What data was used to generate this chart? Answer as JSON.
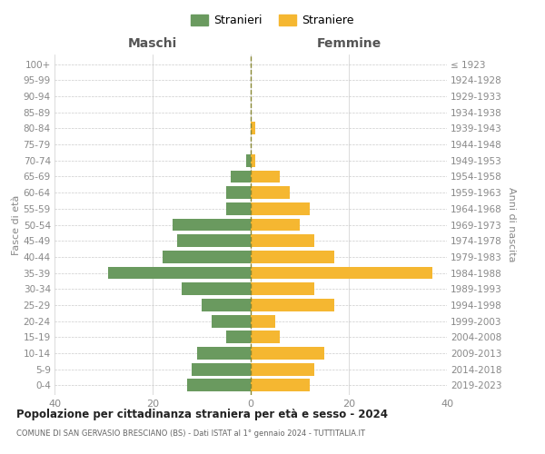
{
  "age_groups": [
    "0-4",
    "5-9",
    "10-14",
    "15-19",
    "20-24",
    "25-29",
    "30-34",
    "35-39",
    "40-44",
    "45-49",
    "50-54",
    "55-59",
    "60-64",
    "65-69",
    "70-74",
    "75-79",
    "80-84",
    "85-89",
    "90-94",
    "95-99",
    "100+"
  ],
  "birth_years": [
    "2019-2023",
    "2014-2018",
    "2009-2013",
    "2004-2008",
    "1999-2003",
    "1994-1998",
    "1989-1993",
    "1984-1988",
    "1979-1983",
    "1974-1978",
    "1969-1973",
    "1964-1968",
    "1959-1963",
    "1954-1958",
    "1949-1953",
    "1944-1948",
    "1939-1943",
    "1934-1938",
    "1929-1933",
    "1924-1928",
    "≤ 1923"
  ],
  "males": [
    13,
    12,
    11,
    5,
    8,
    10,
    14,
    29,
    18,
    15,
    16,
    5,
    5,
    4,
    1,
    0,
    0,
    0,
    0,
    0,
    0
  ],
  "females": [
    12,
    13,
    15,
    6,
    5,
    17,
    13,
    37,
    17,
    13,
    10,
    12,
    8,
    6,
    1,
    0,
    1,
    0,
    0,
    0,
    0
  ],
  "male_color": "#6a9a5f",
  "female_color": "#f5b731",
  "male_label": "Stranieri",
  "female_label": "Straniere",
  "title": "Popolazione per cittadinanza straniera per età e sesso - 2024",
  "subtitle": "COMUNE DI SAN GERVASIO BRESCIANO (BS) - Dati ISTAT al 1° gennaio 2024 - TUTTITALIA.IT",
  "xlabel_left": "Maschi",
  "xlabel_right": "Femmine",
  "ylabel_left": "Fasce di età",
  "ylabel_right": "Anni di nascita",
  "xlim": 40,
  "bg_color": "#ffffff",
  "grid_color": "#cccccc"
}
